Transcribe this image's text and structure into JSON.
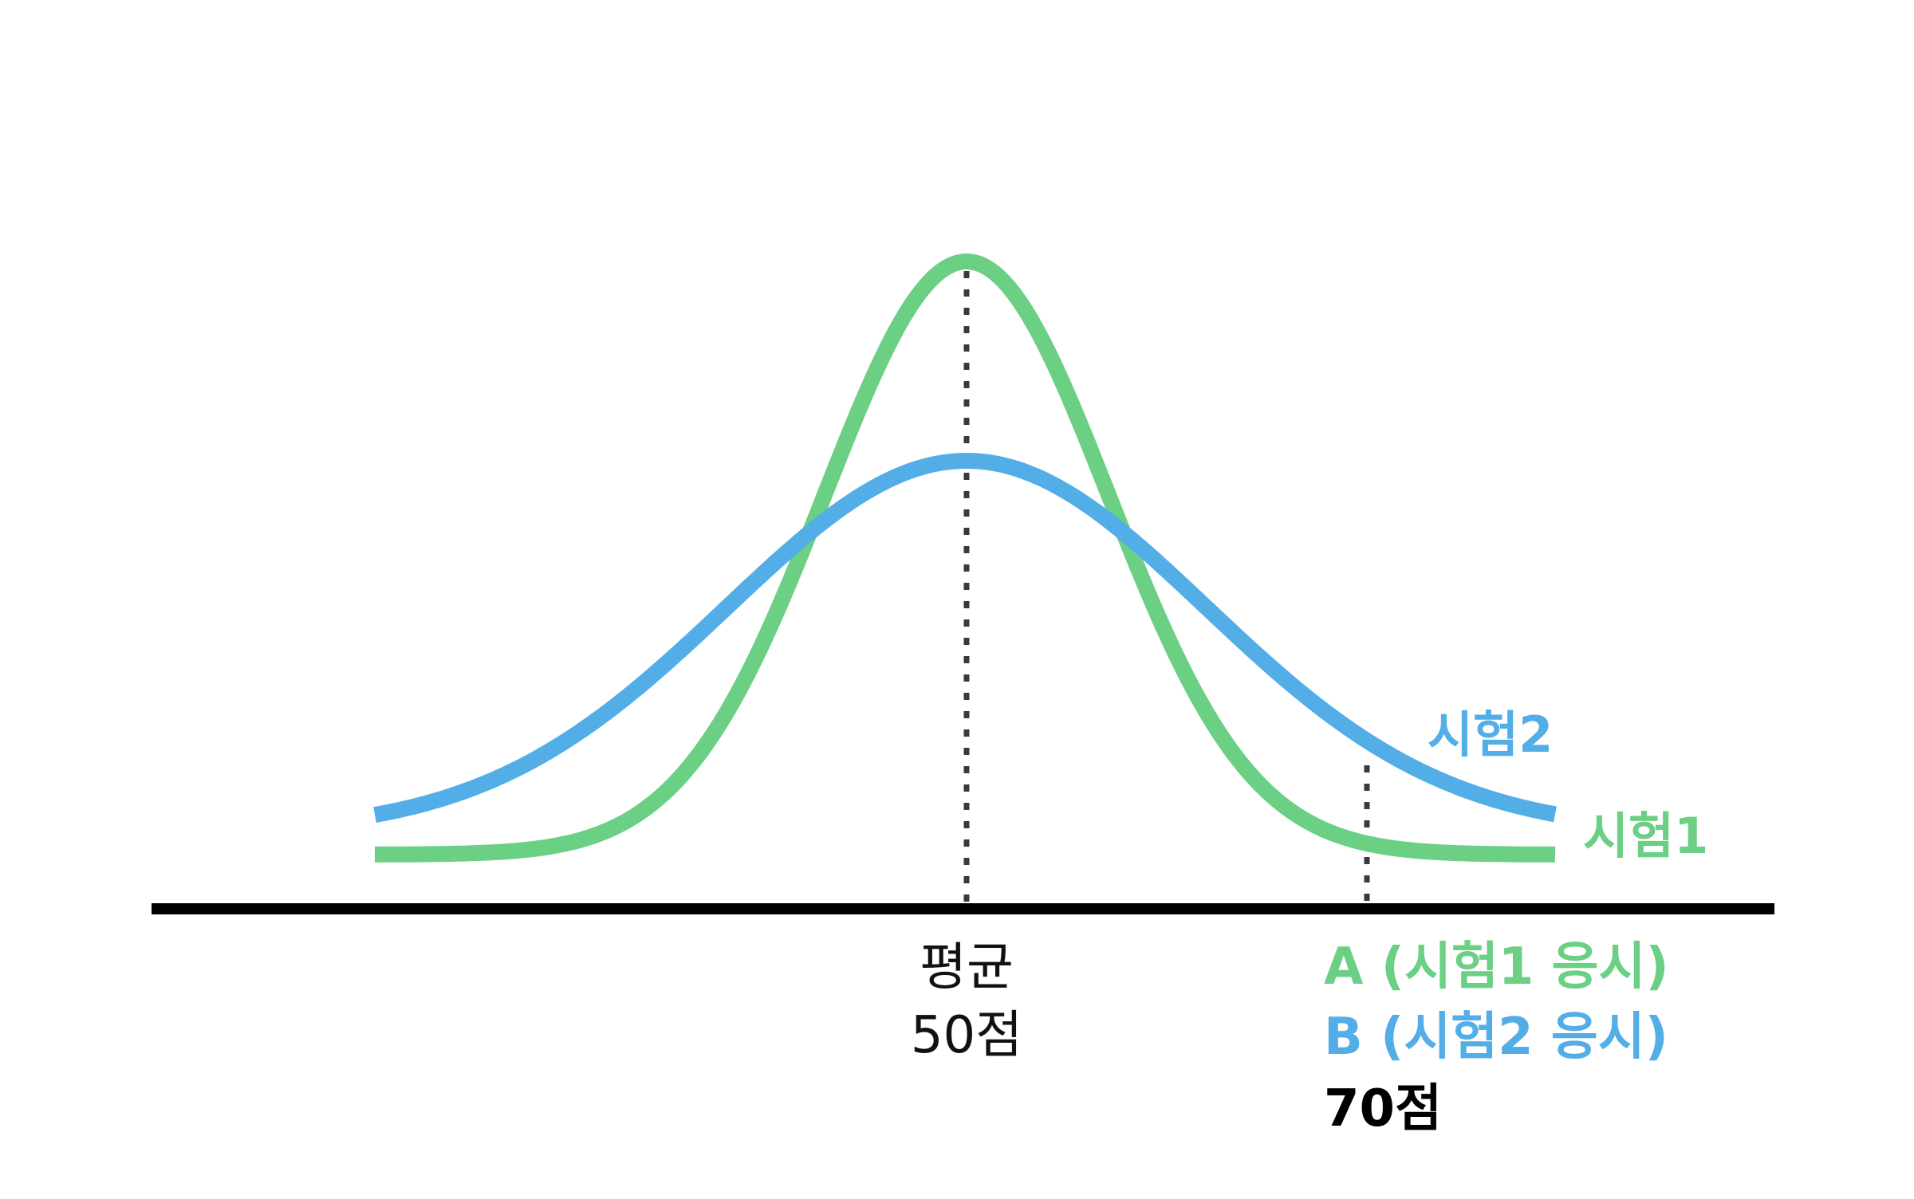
{
  "curves": {
    "test1": {
      "label": "시험1",
      "color": "#6BCF84"
    },
    "test2": {
      "label": "시험2",
      "color": "#53AEE8"
    }
  },
  "axis_color": "#000000",
  "guide_color": "#3A3A3A",
  "mean": {
    "title": "평균",
    "value": "50점"
  },
  "takers": {
    "a": {
      "label": "A (시험1 응시)"
    },
    "b": {
      "label": "B (시험2 응시)"
    },
    "score": "70점"
  }
}
